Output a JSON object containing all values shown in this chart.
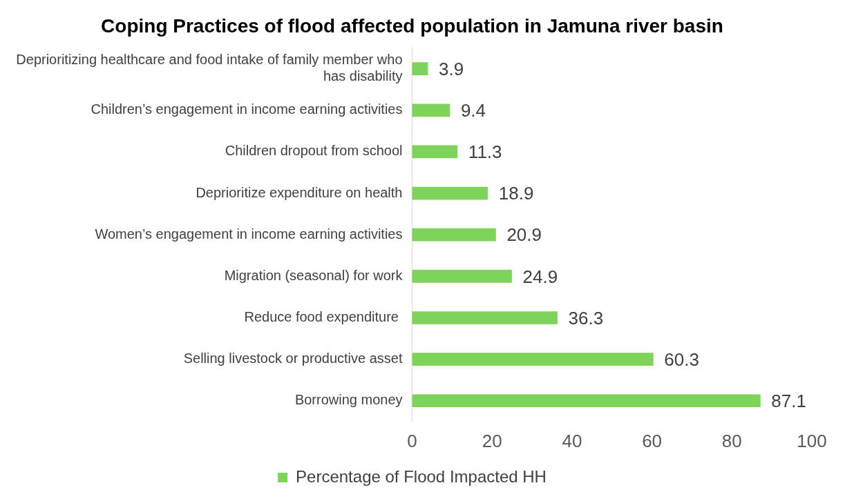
{
  "chart_data": {
    "type": "bar",
    "orientation": "horizontal",
    "title": "Coping Practices of flood affected population in Jamuna river basin",
    "categories": [
      "Deprioritizing healthcare and food intake of family member who has disability",
      "Children’s engagement in income earning activities",
      "Children dropout from school",
      "Deprioritize expenditure on health",
      "Women’s engagement in income earning activities",
      "Migration (seasonal) for work",
      "Reduce food expenditure ",
      "Selling livestock or productive asset",
      "Borrowing money"
    ],
    "series": [
      {
        "name": "Percentage of Flood Impacted HH",
        "color": "#7ed35a",
        "values": [
          3.9,
          9.4,
          11.3,
          18.9,
          20.9,
          24.9,
          36.3,
          60.3,
          87.1
        ]
      }
    ],
    "xlim": [
      0,
      100
    ],
    "xticks": [
      0,
      20,
      40,
      60,
      80,
      100
    ],
    "data_labels": true,
    "grid": false,
    "legend": "bottom"
  }
}
